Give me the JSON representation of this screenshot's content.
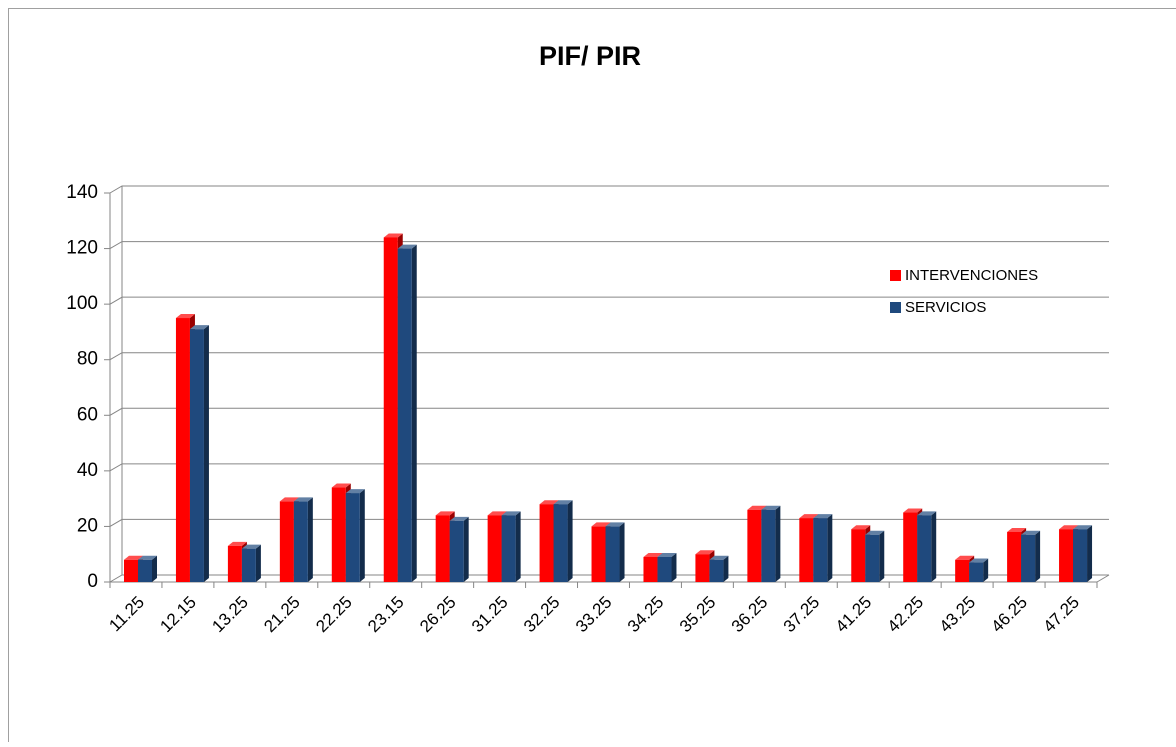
{
  "chart_data": {
    "type": "bar3d",
    "title": "PIF/ PIR",
    "categories": [
      "11.25",
      "12.15",
      "13.25",
      "21.25",
      "22.25",
      "23.15",
      "26.25",
      "31.25",
      "32.25",
      "33.25",
      "34.25",
      "35.25",
      "36.25",
      "37.25",
      "41.25",
      "42.25",
      "43.25",
      "46.25",
      "47.25"
    ],
    "series": [
      {
        "name": "INTERVENCIONES",
        "color": "#ff0000",
        "values": [
          8,
          95,
          13,
          29,
          34,
          124,
          24,
          24,
          28,
          20,
          9,
          10,
          26,
          23,
          19,
          25,
          8,
          18,
          19
        ]
      },
      {
        "name": "SERVICIOS",
        "color": "#1f497d",
        "values": [
          8,
          91,
          12,
          29,
          32,
          120,
          22,
          24,
          28,
          20,
          9,
          8,
          26,
          23,
          17,
          24,
          7,
          17,
          19
        ]
      }
    ],
    "ylim": [
      0,
      140
    ],
    "yticks": [
      0,
      20,
      40,
      60,
      80,
      100,
      120,
      140
    ],
    "grid": true,
    "legend": "right"
  }
}
